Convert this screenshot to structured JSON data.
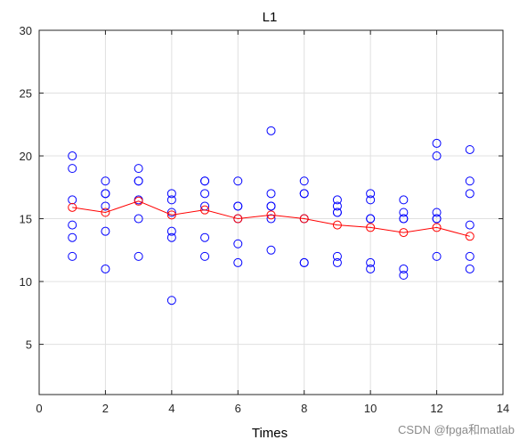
{
  "watermark": "CSDN @fpga和matlab",
  "chart_data": {
    "type": "scatter",
    "title": "L1",
    "xlabel": "Times",
    "ylabel": "",
    "xlim": [
      0,
      14
    ],
    "ylim": [
      1,
      30
    ],
    "xticks": [
      0,
      2,
      4,
      6,
      8,
      10,
      12,
      14
    ],
    "yticks": [
      5,
      10,
      15,
      20,
      25,
      30
    ],
    "grid": true,
    "colors": {
      "points": "#0000ff",
      "mean": "#ff0000",
      "grid": "#e0e0e0",
      "axes": "#262626"
    },
    "series": [
      {
        "marker": "circle",
        "x": [
          1,
          1,
          1,
          1,
          1,
          1,
          2,
          2,
          2,
          2,
          2,
          2,
          3,
          3,
          3,
          3,
          3,
          3,
          4,
          4,
          4,
          4,
          4,
          4,
          5,
          5,
          5,
          5,
          5,
          5,
          6,
          6,
          6,
          6,
          6,
          6,
          7,
          7,
          7,
          7,
          7,
          7,
          8,
          8,
          8,
          8,
          8,
          8,
          9,
          9,
          9,
          9,
          9,
          9,
          10,
          10,
          10,
          10,
          10,
          10,
          11,
          11,
          11,
          11,
          11,
          11,
          12,
          12,
          12,
          12,
          12,
          12,
          13,
          13,
          13,
          13,
          13,
          13
        ],
        "y": [
          20,
          19,
          16.5,
          14.5,
          13.5,
          12,
          18,
          17,
          17,
          16,
          14,
          11,
          19,
          18,
          18,
          16.5,
          15,
          12,
          17,
          16.5,
          15.5,
          14,
          13.5,
          8.5,
          18,
          18,
          17,
          16,
          13.5,
          12,
          18,
          16,
          16,
          15,
          13,
          11.5,
          22,
          17,
          16,
          16,
          15,
          12.5,
          18,
          17,
          17,
          15,
          11.5,
          11.5,
          16.5,
          16,
          15.5,
          15.5,
          12,
          11.5,
          17,
          16.5,
          15,
          15,
          11.5,
          11,
          16.5,
          15.5,
          15,
          15,
          11,
          10.5,
          21,
          20,
          15.5,
          15,
          15,
          12,
          20.5,
          18,
          17,
          14.5,
          12,
          11
        ]
      },
      {
        "marker": "circle-line",
        "x": [
          1,
          2,
          3,
          4,
          5,
          6,
          7,
          8,
          9,
          10,
          11,
          12,
          13
        ],
        "y": [
          15.9,
          15.5,
          16.4,
          15.3,
          15.7,
          15.0,
          15.3,
          15.0,
          14.5,
          14.3,
          13.9,
          14.3,
          13.6
        ]
      }
    ]
  }
}
